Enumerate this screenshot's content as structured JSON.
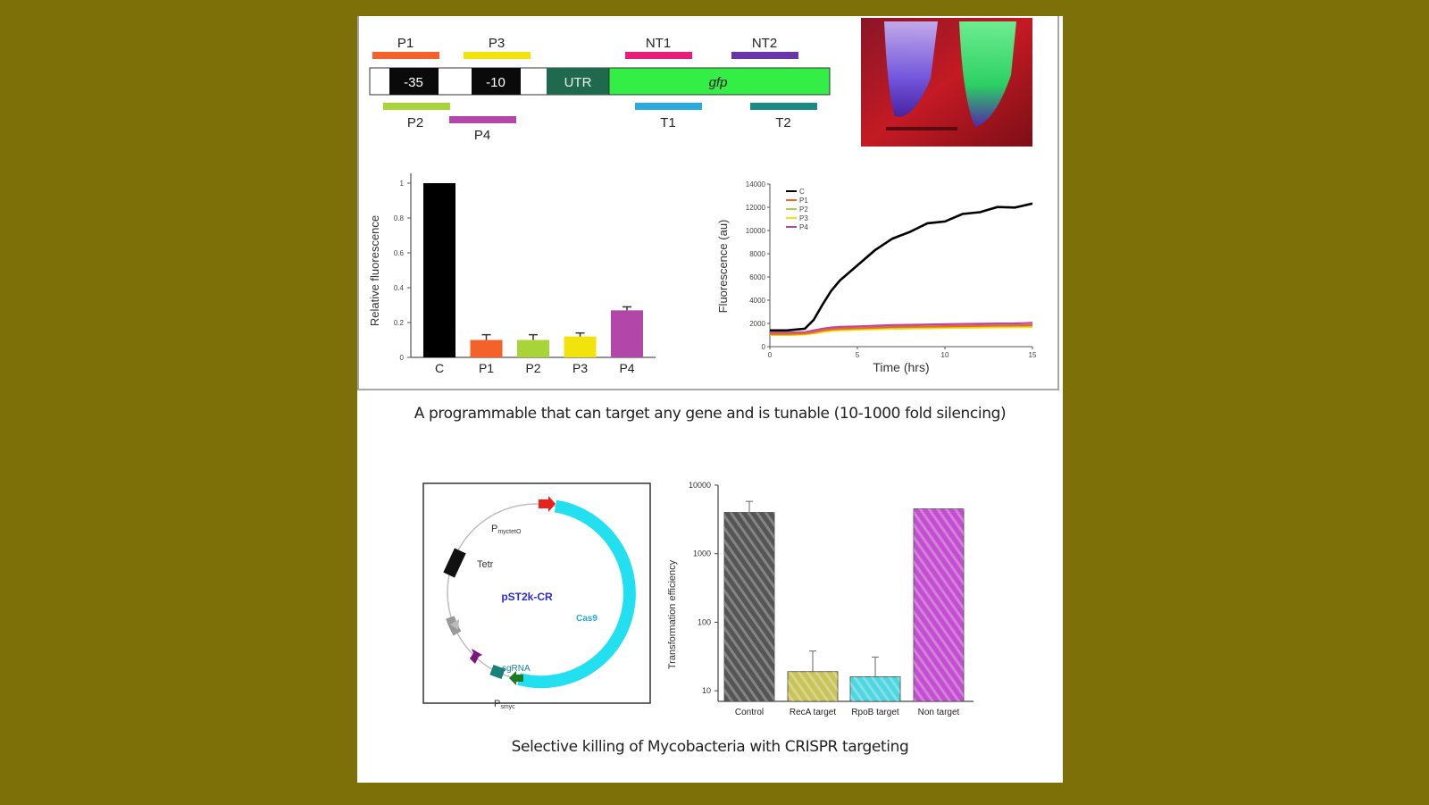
{
  "gene_map": {
    "top_probes": [
      {
        "label": "P1",
        "color": "#f4612a"
      },
      {
        "label": "P3",
        "color": "#f2e30c"
      },
      {
        "label": "NT1",
        "color": "#e91e7a"
      },
      {
        "label": "NT2",
        "color": "#6a35a8"
      }
    ],
    "bottom_probes": [
      {
        "label": "P2",
        "color": "#a8d43a"
      },
      {
        "label": "P4",
        "color": "#b347a9"
      },
      {
        "label": "T1",
        "color": "#29abe2"
      },
      {
        "label": "T2",
        "color": "#1b8c84"
      }
    ],
    "segments": {
      "minus35": "-35",
      "minus10": "-10",
      "utr": "UTR",
      "gfp": "gfp"
    }
  },
  "bar_chart_fluor": {
    "ylabel": "Relative fluorescence",
    "yticks": [
      "0",
      "0.2",
      "0.4",
      "0.6",
      "0.8",
      "1"
    ]
  },
  "line_chart_fluor": {
    "xlabel": "Time (hrs)",
    "ylabel": "Fluorescence (au)",
    "xticks": [
      "0",
      "5",
      "10",
      "15"
    ],
    "yticks": [
      "0",
      "2000",
      "4000",
      "6000",
      "8000",
      "10000",
      "12000",
      "14000"
    ],
    "legend": [
      "C",
      "P1",
      "P2",
      "P3",
      "P4"
    ]
  },
  "caption_top": "A programmable that can target any gene and is tunable (10-1000 fold silencing)",
  "plasmid": {
    "name": "pST2k-CR",
    "labels": {
      "promoter_top": "P",
      "promoter_top_sub": "myctetO",
      "tetr": "Tetr",
      "cas9": "Cas9",
      "sgrna": "sgRNA",
      "promoter_bottom": "P",
      "promoter_bottom_sub": "smyc"
    }
  },
  "bar_chart_transform": {
    "ylabel": "Transformation efficiency",
    "yticks": [
      "10",
      "100",
      "1000",
      "10000"
    ]
  },
  "caption_bottom": "Selective killing of Mycobacteria with CRISPR targeting",
  "chart_data": [
    {
      "type": "bar",
      "categories": [
        "C",
        "P1",
        "P2",
        "P3",
        "P4"
      ],
      "values": [
        1.0,
        0.1,
        0.1,
        0.12,
        0.27
      ],
      "errors": [
        0,
        0.03,
        0.03,
        0.02,
        0.02
      ],
      "colors": [
        "#000000",
        "#f4612a",
        "#a8d43a",
        "#f2e30c",
        "#b347a9"
      ],
      "title": "",
      "xlabel": "",
      "ylabel": "Relative fluorescence",
      "ylim": [
        0,
        1.0
      ]
    },
    {
      "type": "line",
      "x": [
        0,
        1,
        2,
        2.5,
        3,
        3.5,
        4,
        5,
        6,
        7,
        8,
        9,
        10,
        11,
        12,
        13,
        14,
        15
      ],
      "series": [
        {
          "name": "C",
          "color": "#000000",
          "values": [
            1400,
            1400,
            1550,
            2300,
            3600,
            4800,
            5700,
            7000,
            8300,
            9300,
            10000,
            10500,
            10900,
            11300,
            11700,
            11900,
            12100,
            12200
          ]
        },
        {
          "name": "P1",
          "color": "#f4612a",
          "values": [
            1100,
            1100,
            1150,
            1250,
            1400,
            1500,
            1550,
            1600,
            1650,
            1700,
            1720,
            1740,
            1760,
            1780,
            1800,
            1820,
            1830,
            1850
          ]
        },
        {
          "name": "P2",
          "color": "#a8d43a",
          "values": [
            1050,
            1050,
            1100,
            1200,
            1350,
            1450,
            1500,
            1550,
            1600,
            1650,
            1670,
            1690,
            1710,
            1730,
            1750,
            1770,
            1780,
            1800
          ]
        },
        {
          "name": "P3",
          "color": "#f2e30c",
          "values": [
            1000,
            1000,
            1050,
            1150,
            1250,
            1350,
            1400,
            1450,
            1500,
            1540,
            1560,
            1580,
            1600,
            1620,
            1640,
            1660,
            1670,
            1680
          ]
        },
        {
          "name": "P4",
          "color": "#b347a9",
          "values": [
            1200,
            1200,
            1250,
            1400,
            1550,
            1650,
            1700,
            1750,
            1800,
            1850,
            1880,
            1910,
            1930,
            1950,
            1970,
            1990,
            2000,
            2050
          ]
        }
      ],
      "xlabel": "Time (hrs)",
      "ylabel": "Fluorescence (au)",
      "xlim": [
        0,
        15
      ],
      "ylim": [
        0,
        14000
      ]
    },
    {
      "type": "bar",
      "categories": [
        "Control",
        "RecA target",
        "RpoB target",
        "Non target"
      ],
      "values": [
        4000,
        19,
        16,
        4500
      ],
      "errors_upper": [
        5800,
        38,
        31,
        4500
      ],
      "colors": [
        "#555555",
        "#c9c45a",
        "#4fd6e0",
        "#c34fd0"
      ],
      "title": "",
      "xlabel": "",
      "ylabel": "Transformation efficiency",
      "yscale": "log",
      "ylim": [
        7,
        10000
      ]
    }
  ]
}
